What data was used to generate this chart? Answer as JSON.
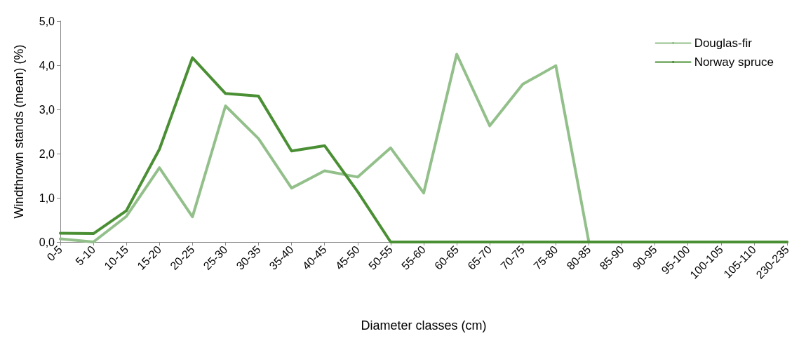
{
  "chart_data": {
    "type": "line",
    "xlabel": "Diameter classes (cm)",
    "ylabel": "Windthrown stands (mean) (%)",
    "categories": [
      "0-5",
      "5-10",
      "10-15",
      "15-20",
      "20-25",
      "25-30",
      "30-35",
      "35-40",
      "40-45",
      "45-50",
      "50-55",
      "55-60",
      "60-65",
      "65-70",
      "70-75",
      "75-80",
      "80-85",
      "85-90",
      "90-95",
      "95-100",
      "100-105",
      "105-110",
      "230-235"
    ],
    "series": [
      {
        "name": "Douglas-fir",
        "color": "#93c08a",
        "values": [
          0.07,
          0,
          0.58,
          1.68,
          0.57,
          3.08,
          2.34,
          1.22,
          1.61,
          1.47,
          2.13,
          1.11,
          4.25,
          2.63,
          3.57,
          3.99,
          0,
          0,
          0,
          0,
          0,
          0,
          0
        ]
      },
      {
        "name": "Norway spruce",
        "color": "#4a8f34",
        "values": [
          0.2,
          0.19,
          0.71,
          2.1,
          4.17,
          3.36,
          3.3,
          2.06,
          2.18,
          1.14,
          0,
          0,
          0,
          0,
          0,
          0,
          0,
          0,
          0,
          0,
          0,
          0,
          0
        ]
      }
    ],
    "ylim": [
      0,
      5
    ],
    "yticks": [
      {
        "value": 0,
        "label": "0,0"
      },
      {
        "value": 1,
        "label": "1,0"
      },
      {
        "value": 2,
        "label": "2,0"
      },
      {
        "value": 3,
        "label": "3,0"
      },
      {
        "value": 4,
        "label": "4,0"
      },
      {
        "value": 5,
        "label": "5,0"
      }
    ],
    "grid": false,
    "legend": "top right",
    "marker": "none",
    "line_style": "solid"
  }
}
